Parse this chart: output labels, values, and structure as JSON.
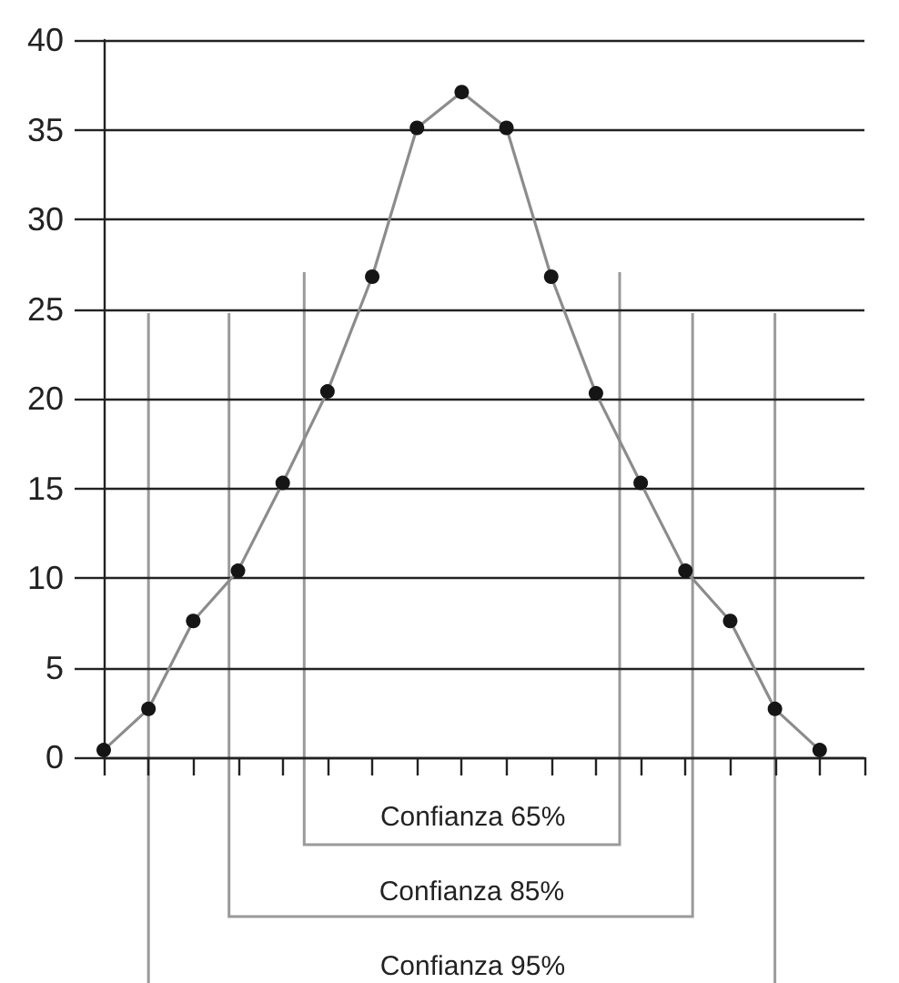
{
  "chart_data": {
    "type": "line",
    "categories": [
      null,
      null,
      null,
      null,
      null,
      null,
      null,
      null,
      null,
      null,
      null,
      null,
      null,
      null,
      null,
      null,
      null,
      null
    ],
    "values": [
      0.4,
      2.7,
      7.6,
      10.4,
      15.3,
      20.4,
      26.8,
      35.1,
      37.1,
      35.1,
      26.8,
      20.3,
      15.3,
      10.4,
      7.6,
      2.7,
      0.4,
      null
    ],
    "color": "#8c8c8c",
    "marker": "circle",
    "line_style": "solid",
    "ylim": [
      0,
      40
    ],
    "yticks": [
      0,
      5,
      10,
      15,
      20,
      25,
      30,
      35,
      40
    ],
    "grid": "y",
    "tick_labels": "y",
    "annotations": [
      "Confianza 65%",
      "Confianza 85%",
      "Confianza 95%"
    ]
  }
}
